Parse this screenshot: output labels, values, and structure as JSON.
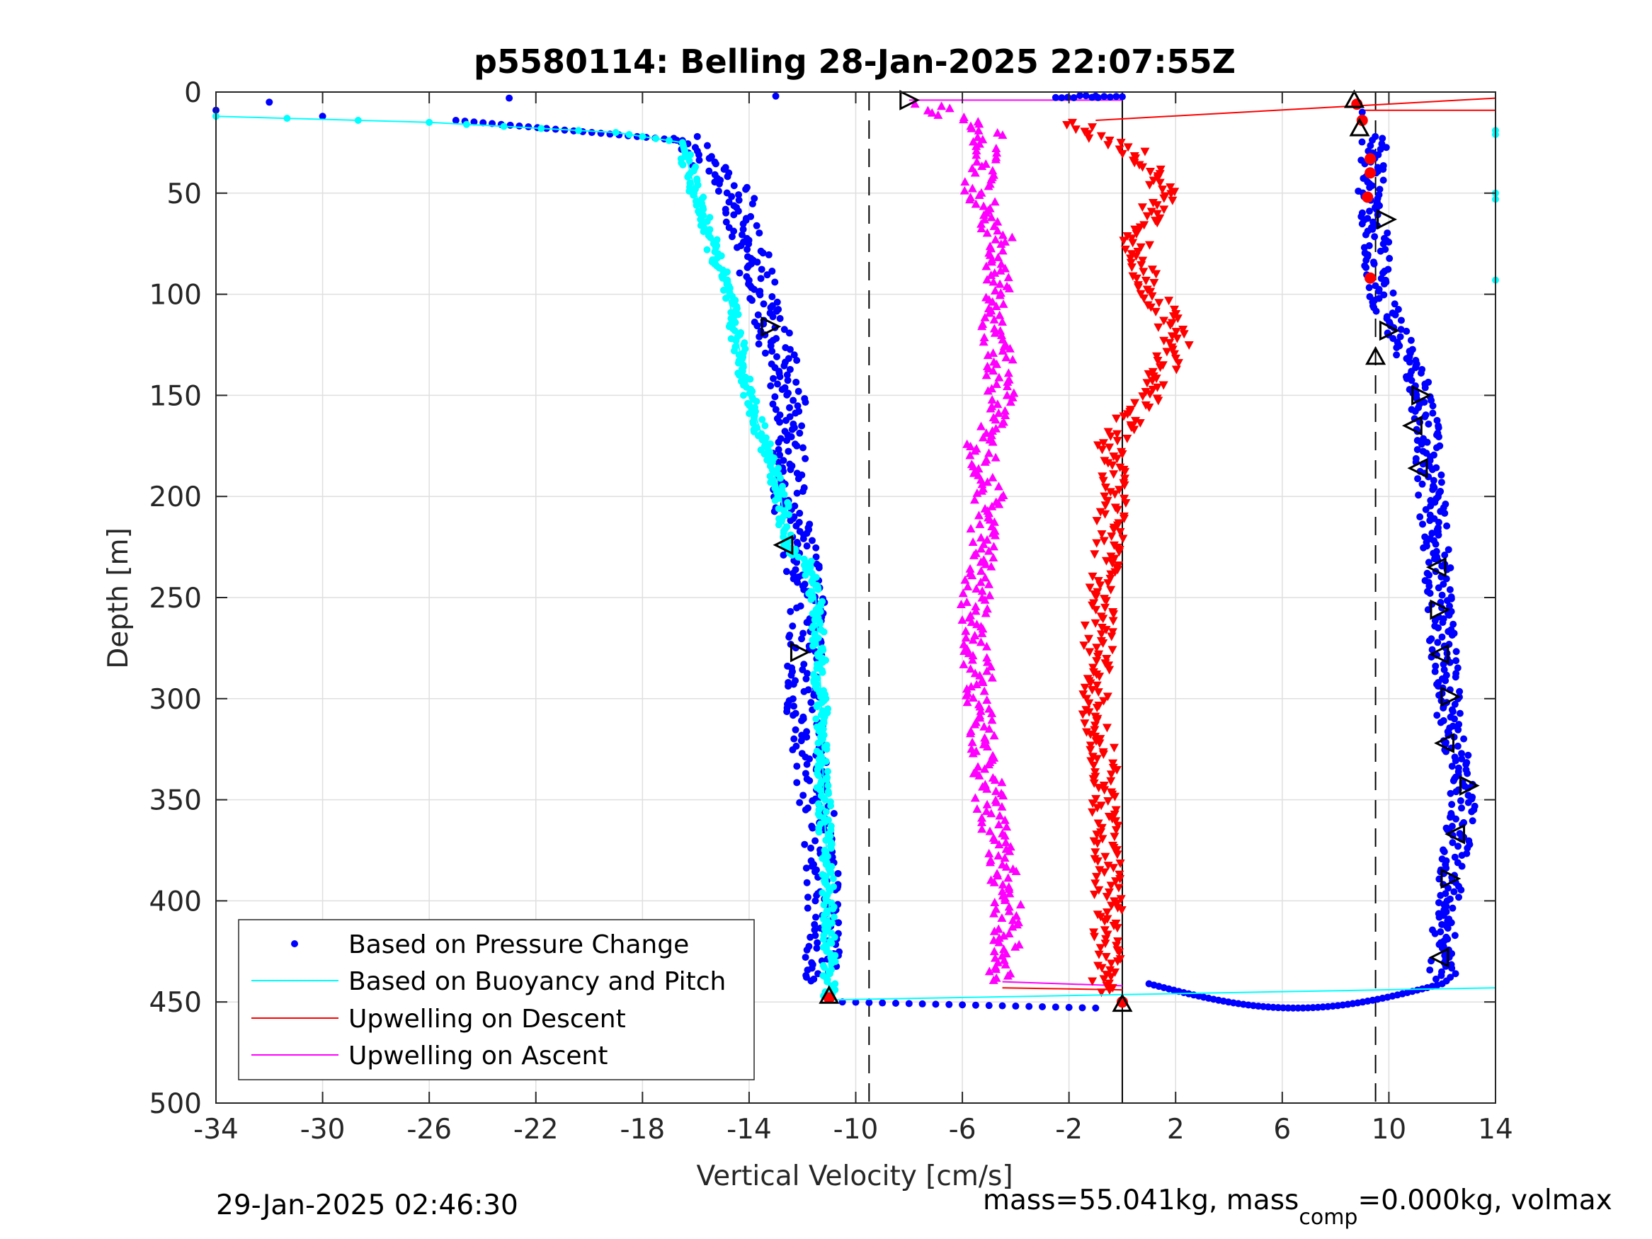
{
  "chart_data": {
    "type": "scatter",
    "title": "p5580114: Belling 28-Jan-2025 22:07:55Z",
    "xlabel": "Vertical Velocity [cm/s]",
    "ylabel": "Depth [m]",
    "xlim": [
      -34,
      14
    ],
    "ylim": [
      0,
      500
    ],
    "y_reversed": true,
    "grid": true,
    "x_ticks": [
      "-34",
      "-30",
      "-26",
      "-22",
      "-18",
      "-14",
      "-10",
      "-6",
      "-2",
      "2",
      "6",
      "10",
      "14"
    ],
    "y_ticks": [
      "0",
      "50",
      "100",
      "150",
      "200",
      "250",
      "300",
      "350",
      "400",
      "450",
      "500"
    ],
    "reference_lines": {
      "dashed_x": [
        -9.5,
        9.5
      ],
      "solid_x": [
        0
      ]
    },
    "legend": {
      "placement": "bottom-left",
      "entries": [
        "Based on Pressure Change",
        "Based on Buoyancy and Pitch",
        "Upwelling on Descent",
        "Upwelling on Ascent"
      ]
    },
    "colors": {
      "pressure": "#0000ff",
      "buoyancy": "#00ffff",
      "descent": "#ff0000",
      "ascent": "#ff00ff"
    },
    "series": [
      {
        "name": "Based on Pressure Change",
        "profile_descent": {
          "depth": [
            22,
            50,
            100,
            150,
            200,
            250,
            300,
            350,
            400,
            440
          ],
          "velocity": [
            -16.5,
            -14.5,
            -13.5,
            -12.5,
            -12.5,
            -11.8,
            -12.0,
            -11.5,
            -11.2,
            -11.3
          ]
        },
        "profile_ascent": {
          "depth": [
            440,
            400,
            350,
            300,
            250,
            200,
            150,
            100,
            50,
            22
          ],
          "velocity": [
            12.0,
            12.2,
            12.8,
            12.2,
            11.9,
            11.6,
            11.3,
            9.7,
            9.3,
            9.5
          ]
        },
        "surface_points": {
          "depth": [
            5,
            9,
            12,
            3,
            2,
            2,
            10
          ],
          "velocity": [
            -32,
            -34,
            -30,
            -23,
            -13,
            -1,
            9
          ]
        }
      },
      {
        "name": "Based on Buoyancy and Pitch",
        "profile": {
          "depth": [
            12,
            15,
            20,
            25,
            50,
            100,
            150,
            200,
            225,
            232,
            250,
            300,
            350,
            400,
            440,
            447
          ],
          "velocity": [
            -34,
            -26,
            -19,
            -16.5,
            -16,
            -14.8,
            -14,
            -12.8,
            -12.6,
            -11.8,
            -11.5,
            -11.3,
            -11.2,
            -11.0,
            -11.0,
            -11.0
          ]
        },
        "bottom_line": {
          "depth": [
            449,
            443
          ],
          "velocity": [
            -11,
            14
          ]
        },
        "edge_points": {
          "depth": [
            19,
            21,
            50,
            53,
            93
          ],
          "velocity": [
            14,
            14,
            14,
            14,
            14
          ]
        }
      },
      {
        "name": "Upwelling on Descent",
        "profile": {
          "depth": [
            15,
            30,
            50,
            75,
            100,
            125,
            150,
            175,
            200,
            250,
            300,
            350,
            400,
            445
          ],
          "velocity": [
            -2,
            0.5,
            1.5,
            0.5,
            1.2,
            2.0,
            1.0,
            -0.5,
            -0.3,
            -0.8,
            -1.0,
            -0.6,
            -0.5,
            -0.6
          ]
        },
        "surface_lines": {
          "depth_start": [
            14,
            9
          ],
          "velocity_start": [
            -1,
            9
          ],
          "depth_end": [
            3,
            9
          ],
          "velocity_end": [
            14,
            14
          ]
        }
      },
      {
        "name": "Upwelling on Ascent",
        "profile": {
          "depth": [
            5,
            20,
            50,
            75,
            100,
            125,
            150,
            175,
            200,
            250,
            275,
            300,
            350,
            400,
            440
          ],
          "velocity": [
            -7.5,
            -5,
            -5.5,
            -4.5,
            -4.8,
            -4.7,
            -4.5,
            -5.3,
            -5.0,
            -5.5,
            -5.5,
            -5.3,
            -5.0,
            -4.3,
            -4.5
          ]
        },
        "surface_line": {
          "depth": [
            4,
            4
          ],
          "velocity": [
            -8,
            0
          ]
        }
      }
    ],
    "markers": {
      "triangles_black": [
        {
          "velocity": -8.0,
          "depth": 4,
          "dir": "right"
        },
        {
          "velocity": -13.2,
          "depth": 116,
          "dir": "right"
        },
        {
          "velocity": -12.7,
          "depth": 224,
          "dir": "left"
        },
        {
          "velocity": -12.1,
          "depth": 277,
          "dir": "right"
        },
        {
          "velocity": 8.7,
          "depth": 4,
          "dir": "up"
        },
        {
          "velocity": 8.9,
          "depth": 18,
          "dir": "up"
        },
        {
          "velocity": 9.9,
          "depth": 63,
          "dir": "right"
        },
        {
          "velocity": 10.0,
          "depth": 118,
          "dir": "right"
        },
        {
          "velocity": 9.5,
          "depth": 131,
          "dir": "up"
        },
        {
          "velocity": 11.2,
          "depth": 150,
          "dir": "right"
        },
        {
          "velocity": 10.9,
          "depth": 165,
          "dir": "left"
        },
        {
          "velocity": 11.1,
          "depth": 186,
          "dir": "left"
        },
        {
          "velocity": 11.8,
          "depth": 235,
          "dir": "left"
        },
        {
          "velocity": 11.9,
          "depth": 256,
          "dir": "right"
        },
        {
          "velocity": 11.9,
          "depth": 278,
          "dir": "left"
        },
        {
          "velocity": 12.3,
          "depth": 299,
          "dir": "right"
        },
        {
          "velocity": 12.1,
          "depth": 322,
          "dir": "left"
        },
        {
          "velocity": 13.0,
          "depth": 343,
          "dir": "right"
        },
        {
          "velocity": 12.5,
          "depth": 367,
          "dir": "left"
        },
        {
          "velocity": 12.3,
          "depth": 389,
          "dir": "right"
        },
        {
          "velocity": 11.9,
          "depth": 428,
          "dir": "left"
        },
        {
          "velocity": -11.0,
          "depth": 447,
          "dir": "up"
        },
        {
          "velocity": 0.0,
          "depth": 451,
          "dir": "up"
        }
      ],
      "red_filled": [
        {
          "velocity": 8.8,
          "depth": 6
        },
        {
          "velocity": 9.0,
          "depth": 14
        },
        {
          "velocity": 9.3,
          "depth": 33
        },
        {
          "velocity": 9.3,
          "depth": 40
        },
        {
          "velocity": 9.2,
          "depth": 52
        },
        {
          "velocity": 9.3,
          "depth": 92
        },
        {
          "velocity": -11.0,
          "depth": 448
        },
        {
          "velocity": 0.0,
          "depth": 450
        }
      ]
    }
  },
  "footer": {
    "timestamp": "29-Jan-2025 02:46:30",
    "mass_text": "mass=55.041kg, mass",
    "mass_sub": "comp",
    "mass_rest": "=0.000kg, volmax"
  }
}
